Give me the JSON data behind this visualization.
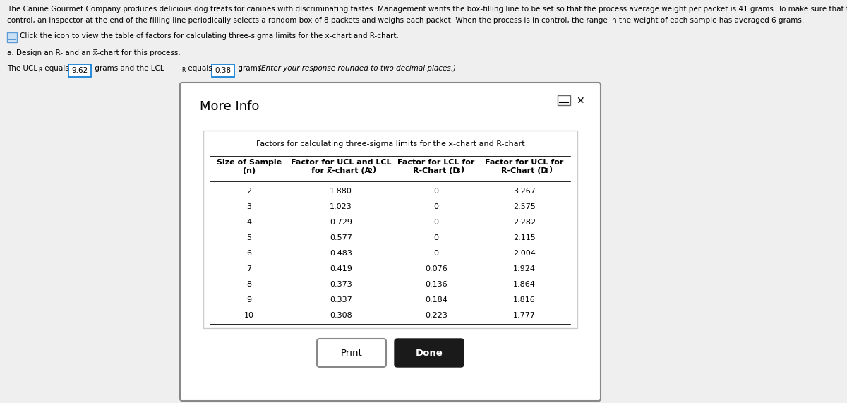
{
  "background_color": "#efefef",
  "main_text_line1": "The Canine Gourmet Company produces delicious dog treats for canines with discriminating tastes. Management wants the box-filling line to be set so that the process average weight per packet is 41 grams. To make sure that the process is in",
  "main_text_line2": "control, an inspector at the end of the filling line periodically selects a random box of 8 packets and weighs each packet. When the process is in control, the range in the weight of each sample has averaged 6 grams.",
  "click_text": "Click the icon to view the table of factors for calculating three-sigma limits for the x-chart and R-chart.",
  "part_a_text": "a. Design an R- and an x-chart for this process.",
  "ucl_value": "9.62",
  "lcl_value": "0.38",
  "dialog_title": "More Info",
  "table_title": "Factors for calculating three-sigma limits for the x-chart and R-chart",
  "col_header1_line1": "Size of Sample",
  "col_header1_line2": "(n)",
  "col_header2_line1": "Factor for UCL and LCL",
  "col_header2_line2": "for x-chart (A",
  "col_header3_line1": "Factor for LCL for",
  "col_header3_line2": "R-Chart (D",
  "col_header4_line1": "Factor for UCL for",
  "col_header4_line2": "R-Chart (D",
  "table_data": [
    [
      2,
      1.88,
      0,
      3.267
    ],
    [
      3,
      1.023,
      0,
      2.575
    ],
    [
      4,
      0.729,
      0,
      2.282
    ],
    [
      5,
      0.577,
      0,
      2.115
    ],
    [
      6,
      0.483,
      0,
      2.004
    ],
    [
      7,
      0.419,
      0.076,
      1.924
    ],
    [
      8,
      0.373,
      0.136,
      1.864
    ],
    [
      9,
      0.337,
      0.184,
      1.816
    ],
    [
      10,
      0.308,
      0.223,
      1.777
    ]
  ],
  "print_button_text": "Print",
  "done_button_text": "Done",
  "fs_body": 8.5,
  "fs_small": 7.5,
  "fs_table": 8.0,
  "fs_table_hdr": 8.0,
  "fs_dialog_title": 13
}
